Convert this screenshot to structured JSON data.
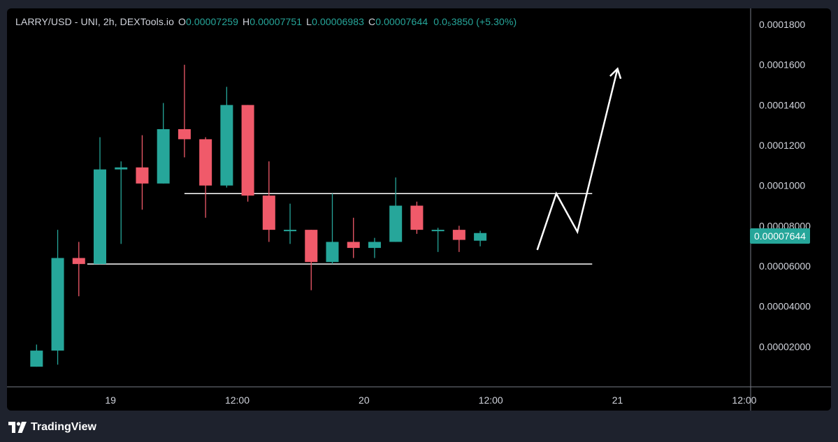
{
  "legend": {
    "symbol": "LARRY/USD - UNI, 2h, DEXTools.io",
    "o_label": "O",
    "o_value": "0.00007259",
    "h_label": "H",
    "h_value": "0.00007751",
    "l_label": "L",
    "l_value": "0.00006983",
    "c_label": "C",
    "c_value": "0.00007644",
    "change": "0.0₅3850 (+5.30%)"
  },
  "last_price_badge": "0.00007644",
  "footer": {
    "brand": "TradingView"
  },
  "colors": {
    "up": "#26a69a",
    "down": "#f05a6a",
    "background": "#000000",
    "text": "#d1d4dc",
    "annotation": "#ffffff"
  },
  "chart_data": {
    "type": "candlestick",
    "title": "LARRY/USD - UNI, 2h, DEXTools.io",
    "ylim": [
      0,
      0.000188
    ],
    "y_ticks": [
      "0.00002000",
      "0.00004000",
      "0.00006000",
      "0.00008000",
      "0.0001000",
      "0.0001200",
      "0.0001400",
      "0.0001600",
      "0.0001800"
    ],
    "y_tick_values": [
      2e-05,
      4e-05,
      6e-05,
      8e-05,
      0.0001,
      0.00012,
      0.00014,
      0.00016,
      0.00018
    ],
    "x_ticks": [
      {
        "label": "19",
        "index": 3.5
      },
      {
        "label": "12:00",
        "index": 9.5
      },
      {
        "label": "20",
        "index": 15.5
      },
      {
        "label": "12:00",
        "index": 21.5
      },
      {
        "label": "21",
        "index": 27.5
      },
      {
        "label": "12:00",
        "index": 33.5
      }
    ],
    "x_index_range": [
      -1.4,
      33.8
    ],
    "candles": [
      {
        "o": 1e-05,
        "h": 2.1e-05,
        "l": 1e-05,
        "c": 1.8e-05
      },
      {
        "o": 1.8e-05,
        "h": 7.8e-05,
        "l": 1.1e-05,
        "c": 6.4e-05
      },
      {
        "o": 6.4e-05,
        "h": 7.2e-05,
        "l": 4.5e-05,
        "c": 6.1e-05
      },
      {
        "o": 6.1e-05,
        "h": 0.000124,
        "l": 6.1e-05,
        "c": 0.000108
      },
      {
        "o": 0.000108,
        "h": 0.000112,
        "l": 7.1e-05,
        "c": 0.000109
      },
      {
        "o": 0.000109,
        "h": 0.000125,
        "l": 8.8e-05,
        "c": 0.000101
      },
      {
        "o": 0.000101,
        "h": 0.000141,
        "l": 0.000101,
        "c": 0.000128
      },
      {
        "o": 0.000128,
        "h": 0.00016,
        "l": 0.000114,
        "c": 0.000123
      },
      {
        "o": 0.000123,
        "h": 0.000124,
        "l": 8.4e-05,
        "c": 0.0001
      },
      {
        "o": 0.0001,
        "h": 0.000149,
        "l": 9.9e-05,
        "c": 0.00014
      },
      {
        "o": 0.00014,
        "h": 0.00014,
        "l": 9.2e-05,
        "c": 9.5e-05
      },
      {
        "o": 9.5e-05,
        "h": 0.000112,
        "l": 7.2e-05,
        "c": 7.8e-05
      },
      {
        "o": 7.8e-05,
        "h": 9.1e-05,
        "l": 7.1e-05,
        "c": 7.8e-05
      },
      {
        "o": 7.8e-05,
        "h": 7.8e-05,
        "l": 4.8e-05,
        "c": 6.2e-05
      },
      {
        "o": 6.2e-05,
        "h": 9.6e-05,
        "l": 6.1e-05,
        "c": 7.2e-05
      },
      {
        "o": 7.2e-05,
        "h": 8.4e-05,
        "l": 6.4e-05,
        "c": 6.9e-05
      },
      {
        "o": 6.9e-05,
        "h": 7.4e-05,
        "l": 6.4e-05,
        "c": 7.2e-05
      },
      {
        "o": 7.2e-05,
        "h": 0.000104,
        "l": 7.2e-05,
        "c": 9e-05
      },
      {
        "o": 9e-05,
        "h": 9.2e-05,
        "l": 7.6e-05,
        "c": 7.8e-05
      },
      {
        "o": 7.8e-05,
        "h": 7.9e-05,
        "l": 6.7e-05,
        "c": 7.8e-05
      },
      {
        "o": 7.8e-05,
        "h": 8e-05,
        "l": 6.7e-05,
        "c": 7.3e-05
      },
      {
        "o": 7.26e-05,
        "h": 7.75e-05,
        "l": 6.98e-05,
        "c": 7.64e-05
      }
    ],
    "annotations": {
      "horizontal_lines": [
        {
          "y": 9.6e-05,
          "x_from": 7.0,
          "x_to": 26.3
        },
        {
          "y": 6.1e-05,
          "x_from": 2.4,
          "x_to": 26.3
        }
      ],
      "arrow_path": [
        {
          "x": 23.7,
          "y": 6.8e-05
        },
        {
          "x": 24.6,
          "y": 9.6e-05
        },
        {
          "x": 25.6,
          "y": 7.7e-05
        },
        {
          "x": 27.5,
          "y": 0.000158
        }
      ]
    }
  }
}
